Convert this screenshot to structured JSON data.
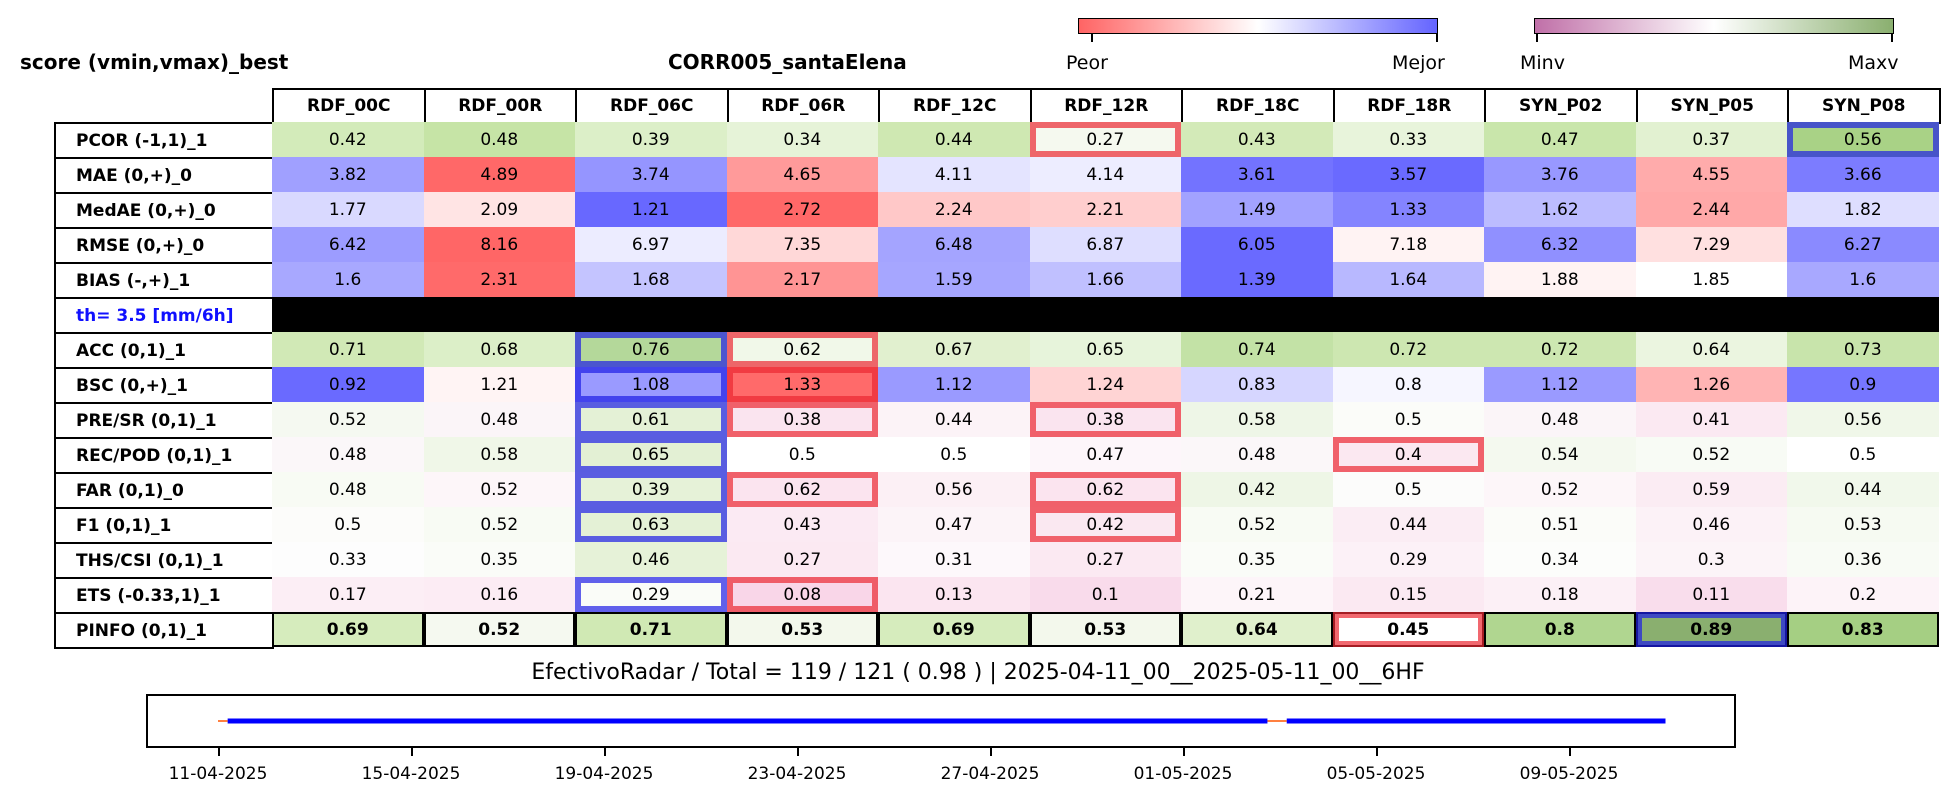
{
  "header": {
    "left_title": "score (vmin,vmax)_best",
    "center_title": "CORR005_santaElena"
  },
  "colorbars": [
    {
      "left_label": "Peor",
      "right_label": "Mejor",
      "colors": [
        "#ff6464",
        "#ffffff",
        "#6464ff"
      ]
    },
    {
      "left_label": "Minv",
      "right_label": "Maxv",
      "colors": [
        "#c070a8",
        "#ffffff",
        "#8aaf6f"
      ]
    }
  ],
  "chart_data": {
    "type": "table",
    "columns": [
      "RDF_00C",
      "RDF_00R",
      "RDF_06C",
      "RDF_06R",
      "RDF_12C",
      "RDF_12R",
      "RDF_18C",
      "RDF_18R",
      "SYN_P02",
      "SYN_P05",
      "SYN_P08"
    ],
    "rows": [
      {
        "label": "PCOR (-1,1)_1",
        "values": [
          "0.42",
          "0.48",
          "0.39",
          "0.34",
          "0.44",
          "0.27",
          "0.43",
          "0.33",
          "0.47",
          "0.37",
          "0.56"
        ],
        "colors": [
          "#d3ebba",
          "#c6e4a6",
          "#dcefc8",
          "#e6f3d8",
          "#cfe8b2",
          "#f5f9ef",
          "#d3eab8",
          "#e8f4db",
          "#c9e6ab",
          "#e2f1d1",
          "#a9d286"
        ]
      },
      {
        "label": "MAE (0,+)_0",
        "values": [
          "3.82",
          "4.89",
          "3.74",
          "4.65",
          "4.11",
          "4.14",
          "3.61",
          "3.57",
          "3.76",
          "4.55",
          "3.66"
        ],
        "colors": [
          "#a0a0ff",
          "#ff6868",
          "#9595ff",
          "#ff9a9a",
          "#e4e4ff",
          "#ededff",
          "#7373ff",
          "#6a6aff",
          "#9898ff",
          "#ffabab",
          "#7c7cff"
        ]
      },
      {
        "label": "MedAE (0,+)_0",
        "values": [
          "1.77",
          "2.09",
          "1.21",
          "2.72",
          "2.24",
          "2.21",
          "1.49",
          "1.33",
          "1.62",
          "2.44",
          "1.82"
        ],
        "colors": [
          "#d9d9ff",
          "#ffe4e4",
          "#6868ff",
          "#ff6868",
          "#ffc8c8",
          "#ffcece",
          "#a2a2ff",
          "#8484ff",
          "#bcbcff",
          "#ffa8a8",
          "#dedeff"
        ]
      },
      {
        "label": "RMSE (0,+)_0",
        "values": [
          "6.42",
          "8.16",
          "6.97",
          "7.35",
          "6.48",
          "6.87",
          "6.05",
          "7.18",
          "6.32",
          "7.29",
          "6.27"
        ],
        "colors": [
          "#9c9cff",
          "#ff6666",
          "#ececff",
          "#ffd8d8",
          "#a4a4ff",
          "#dedeff",
          "#6a6aff",
          "#fff3f3",
          "#9090ff",
          "#ffe0e0",
          "#8a8aff"
        ]
      },
      {
        "label": "BIAS (-,+)_1",
        "values": [
          "1.6",
          "2.31",
          "1.68",
          "2.17",
          "1.59",
          "1.66",
          "1.39",
          "1.64",
          "1.88",
          "1.85",
          "1.6"
        ],
        "colors": [
          "#a8a8ff",
          "#ff6a6a",
          "#c4c4ff",
          "#ff9494",
          "#a6a6ff",
          "#c0c0ff",
          "#6a6aff",
          "#b8b8ff",
          "#fff3f3",
          "#ffffff",
          "#a8a8ff"
        ]
      },
      {
        "label": "th= 3.5 [mm/6h]",
        "threshold": true,
        "values": [
          "",
          "",
          "",
          "",
          "",
          "",
          "",
          "",
          "",
          "",
          ""
        ],
        "colors": [
          "#000000",
          "#000000",
          "#000000",
          "#000000",
          "#000000",
          "#000000",
          "#000000",
          "#000000",
          "#000000",
          "#000000",
          "#000000"
        ]
      },
      {
        "label": "ACC (0,1)_1",
        "values": [
          "0.71",
          "0.68",
          "0.76",
          "0.62",
          "0.67",
          "0.65",
          "0.74",
          "0.72",
          "0.72",
          "0.64",
          "0.73"
        ],
        "colors": [
          "#d1e9b6",
          "#dcefc8",
          "#b4d89a",
          "#f1f8e9",
          "#e1f0cf",
          "#e7f4db",
          "#c3e2a6",
          "#cde7b1",
          "#cde7b1",
          "#ebf5e0",
          "#c8e4ab"
        ]
      },
      {
        "label": "BSC (0,+)_1",
        "values": [
          "0.92",
          "1.21",
          "1.08",
          "1.33",
          "1.12",
          "1.24",
          "0.83",
          "0.8",
          "1.12",
          "1.26",
          "0.9"
        ],
        "colors": [
          "#6a6aff",
          "#fff4f4",
          "#9a9aff",
          "#ff6a6a",
          "#9a9aff",
          "#ffd4d4",
          "#d6d6ff",
          "#f6f6ff",
          "#9a9aff",
          "#ffb4b4",
          "#7676ff"
        ]
      },
      {
        "label": "PRE/SR (0,1)_1",
        "values": [
          "0.52",
          "0.48",
          "0.61",
          "0.38",
          "0.44",
          "0.38",
          "0.58",
          "0.5",
          "0.48",
          "0.41",
          "0.56"
        ],
        "colors": [
          "#f5f9f1",
          "#fbf5f8",
          "#e4f1d6",
          "#fae4ef",
          "#fcf3f7",
          "#fae4ef",
          "#eef6e7",
          "#fbfcf9",
          "#fbf5f8",
          "#fbe9f2",
          "#f0f7e9"
        ]
      },
      {
        "label": "REC/POD (0,1)_1",
        "values": [
          "0.48",
          "0.58",
          "0.65",
          "0.5",
          "0.5",
          "0.47",
          "0.48",
          "0.4",
          "0.54",
          "0.52",
          "0.5"
        ],
        "colors": [
          "#fbf7f9",
          "#f0f7e8",
          "#e3f0d4",
          "#ffffff",
          "#ffffff",
          "#fdf6fa",
          "#fbf7f9",
          "#fbe8f1",
          "#f4f9ef",
          "#f8fbf5",
          "#ffffff"
        ]
      },
      {
        "label": "FAR (0,1)_0",
        "values": [
          "0.48",
          "0.52",
          "0.39",
          "0.62",
          "0.56",
          "0.62",
          "0.42",
          "0.5",
          "0.52",
          "0.59",
          "0.44"
        ],
        "colors": [
          "#f8fbf4",
          "#fdf6f9",
          "#e6f2d8",
          "#fbe4ef",
          "#fcf0f5",
          "#fbe4ef",
          "#eef6e6",
          "#fcfcfb",
          "#fdf6f9",
          "#fbecf3",
          "#f1f8eb"
        ]
      },
      {
        "label": "F1 (0,1)_1",
        "values": [
          "0.5",
          "0.52",
          "0.63",
          "0.43",
          "0.47",
          "0.42",
          "0.52",
          "0.44",
          "0.51",
          "0.46",
          "0.53"
        ],
        "colors": [
          "#fcfcfa",
          "#f8fbf4",
          "#e4f1d6",
          "#fbeaf3",
          "#fcf4f8",
          "#fae8f1",
          "#f8fbf4",
          "#fbedf4",
          "#fbfcf9",
          "#fcf2f7",
          "#f6faf2"
        ]
      },
      {
        "label": "THS/CSI (0,1)_1",
        "values": [
          "0.33",
          "0.35",
          "0.46",
          "0.27",
          "0.31",
          "0.27",
          "0.35",
          "0.29",
          "0.34",
          "0.3",
          "0.36"
        ],
        "colors": [
          "#fdfdfd",
          "#fafcf8",
          "#e6f2d8",
          "#fbe9f2",
          "#fdf8fb",
          "#fbe9f2",
          "#fafcf8",
          "#fcf1f7",
          "#fcfdfb",
          "#fcf4f8",
          "#f8fbf5"
        ]
      },
      {
        "label": "ETS (-0.33,1)_1",
        "values": [
          "0.17",
          "0.16",
          "0.29",
          "0.08",
          "0.13",
          "0.1",
          "0.21",
          "0.15",
          "0.18",
          "0.11",
          "0.2"
        ],
        "colors": [
          "#fceef5",
          "#fcecf4",
          "#fafcf8",
          "#f9d6e8",
          "#fbe5f0",
          "#f9dbeb",
          "#fdf5f9",
          "#fbe9f2",
          "#fcf0f6",
          "#f9ddec",
          "#fdf3f8"
        ]
      },
      {
        "label": "PINFO (0,1)_1",
        "bold": true,
        "values": [
          "0.69",
          "0.52",
          "0.71",
          "0.53",
          "0.69",
          "0.53",
          "0.64",
          "0.45",
          "0.8",
          "0.89",
          "0.83"
        ],
        "colors": [
          "#d6ecbd",
          "#f5f9f0",
          "#d0e9b4",
          "#f3f8ec",
          "#d6ecbd",
          "#f3f8ec",
          "#e0f0cc",
          "#ffffff",
          "#b0d690",
          "#8aaf6f",
          "#a5cf83"
        ]
      }
    ],
    "highlights": [
      {
        "row": 0,
        "col": 5,
        "color": "red"
      },
      {
        "row": 0,
        "col": 10,
        "color": "blue"
      },
      {
        "row": 6,
        "col": 2,
        "color": "blue"
      },
      {
        "row": 6,
        "col": 3,
        "color": "red"
      },
      {
        "row": 7,
        "col": 2,
        "color": "blue"
      },
      {
        "row": 7,
        "col": 3,
        "color": "red"
      },
      {
        "row": 8,
        "col": 2,
        "color": "blue"
      },
      {
        "row": 8,
        "col": 3,
        "color": "red"
      },
      {
        "row": 8,
        "col": 5,
        "color": "red"
      },
      {
        "row": 9,
        "col": 2,
        "color": "blue"
      },
      {
        "row": 9,
        "col": 7,
        "color": "red"
      },
      {
        "row": 10,
        "col": 2,
        "color": "blue"
      },
      {
        "row": 10,
        "col": 3,
        "color": "red"
      },
      {
        "row": 10,
        "col": 5,
        "color": "red"
      },
      {
        "row": 11,
        "col": 2,
        "color": "blue"
      },
      {
        "row": 11,
        "col": 5,
        "color": "red"
      },
      {
        "row": 13,
        "col": 2,
        "color": "blue"
      },
      {
        "row": 13,
        "col": 3,
        "color": "red"
      },
      {
        "row": 14,
        "col": 7,
        "color": "red"
      },
      {
        "row": 14,
        "col": 9,
        "color": "blue"
      }
    ]
  },
  "footer": {
    "text": "EfectivoRadar / Total  =  119 / 121 ( 0.98 ) | 2025-04-11_00__2025-05-11_00__6HF"
  },
  "timeline": {
    "date_ticks": [
      "11-04-2025",
      "15-04-2025",
      "19-04-2025",
      "23-04-2025",
      "27-04-2025",
      "01-05-2025",
      "05-05-2025",
      "09-05-2025"
    ],
    "x_range_days": [
      0,
      31
    ],
    "tick_days": [
      0,
      4,
      8,
      12,
      16,
      20,
      24,
      28
    ],
    "segments": [
      {
        "start_day": 0.2,
        "end_day": 21.75,
        "color": "#0000ff"
      },
      {
        "start_day": 22.15,
        "end_day": 30.0,
        "color": "#0000ff"
      }
    ],
    "gaps": [
      {
        "start_day": 0.0,
        "end_day": 0.2,
        "color": "#ff8040"
      },
      {
        "start_day": 21.75,
        "end_day": 22.15,
        "color": "#ff8040"
      }
    ]
  }
}
